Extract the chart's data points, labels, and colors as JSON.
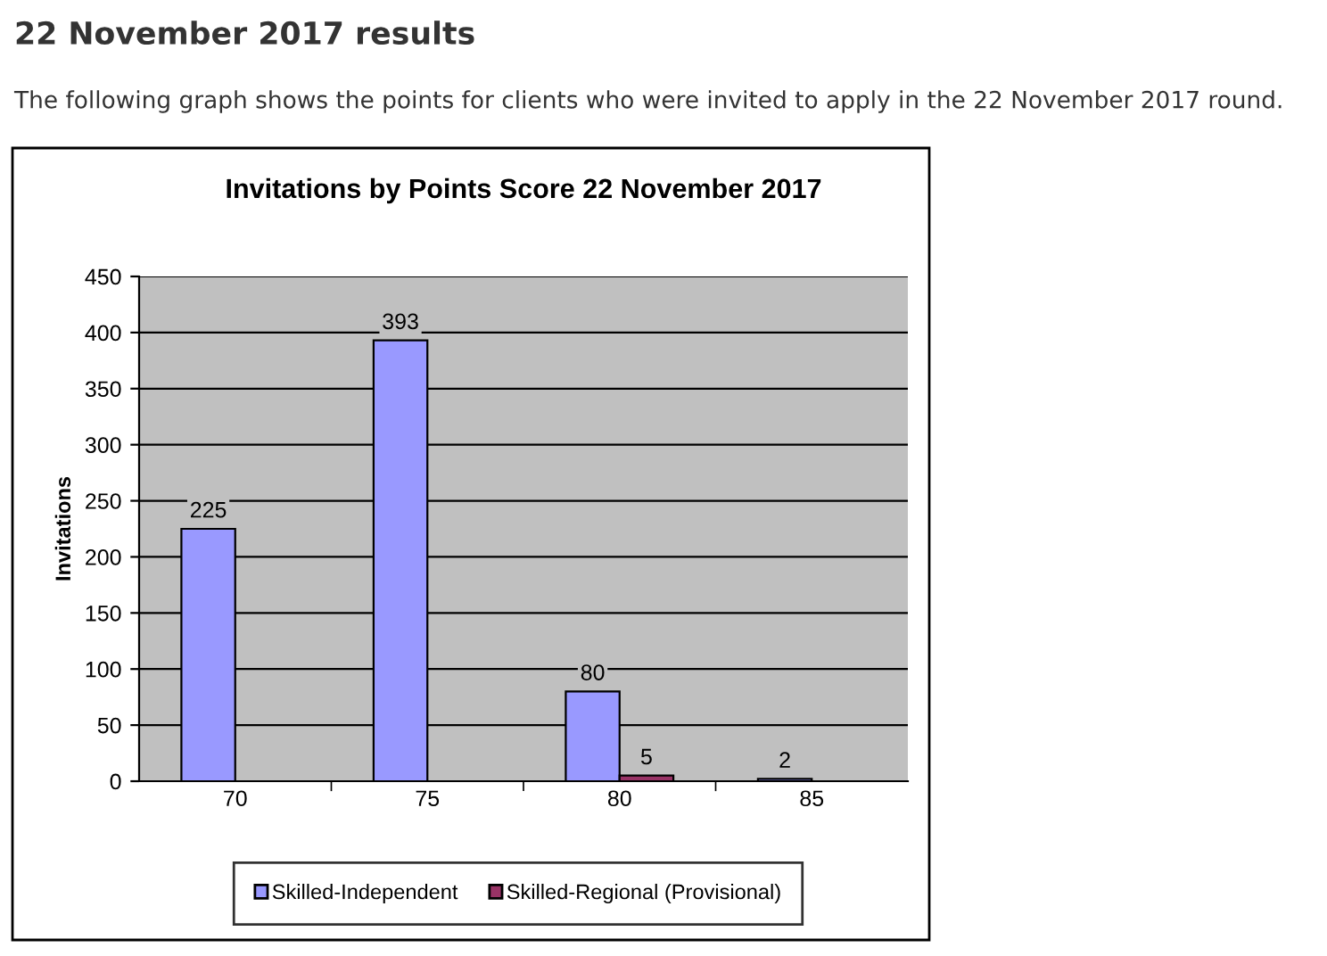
{
  "chart_data": {
    "type": "bar",
    "title": "Invitations by Points Score 22 November 2017",
    "annotations": [
      "22 November 2017 results",
      "The following graph shows the points for clients who were invited to apply in the 22 November 2017 round."
    ],
    "ylabel": "Invitations",
    "categories": [
      "70",
      "75",
      "80",
      "85"
    ],
    "series": [
      {
        "name": "Skilled-Independent",
        "color": "#9999ff",
        "values": [
          225,
          393,
          80,
          2
        ]
      },
      {
        "name": "Skilled-Regional (Provisional)",
        "color": "#993366",
        "values": [
          null,
          null,
          5,
          null
        ]
      }
    ],
    "ylim": [
      0,
      450
    ],
    "yticks": [
      0,
      50,
      100,
      150,
      200,
      250,
      300,
      350,
      400,
      450
    ],
    "grid": "y",
    "legend": "bottom",
    "data_labels": true
  }
}
